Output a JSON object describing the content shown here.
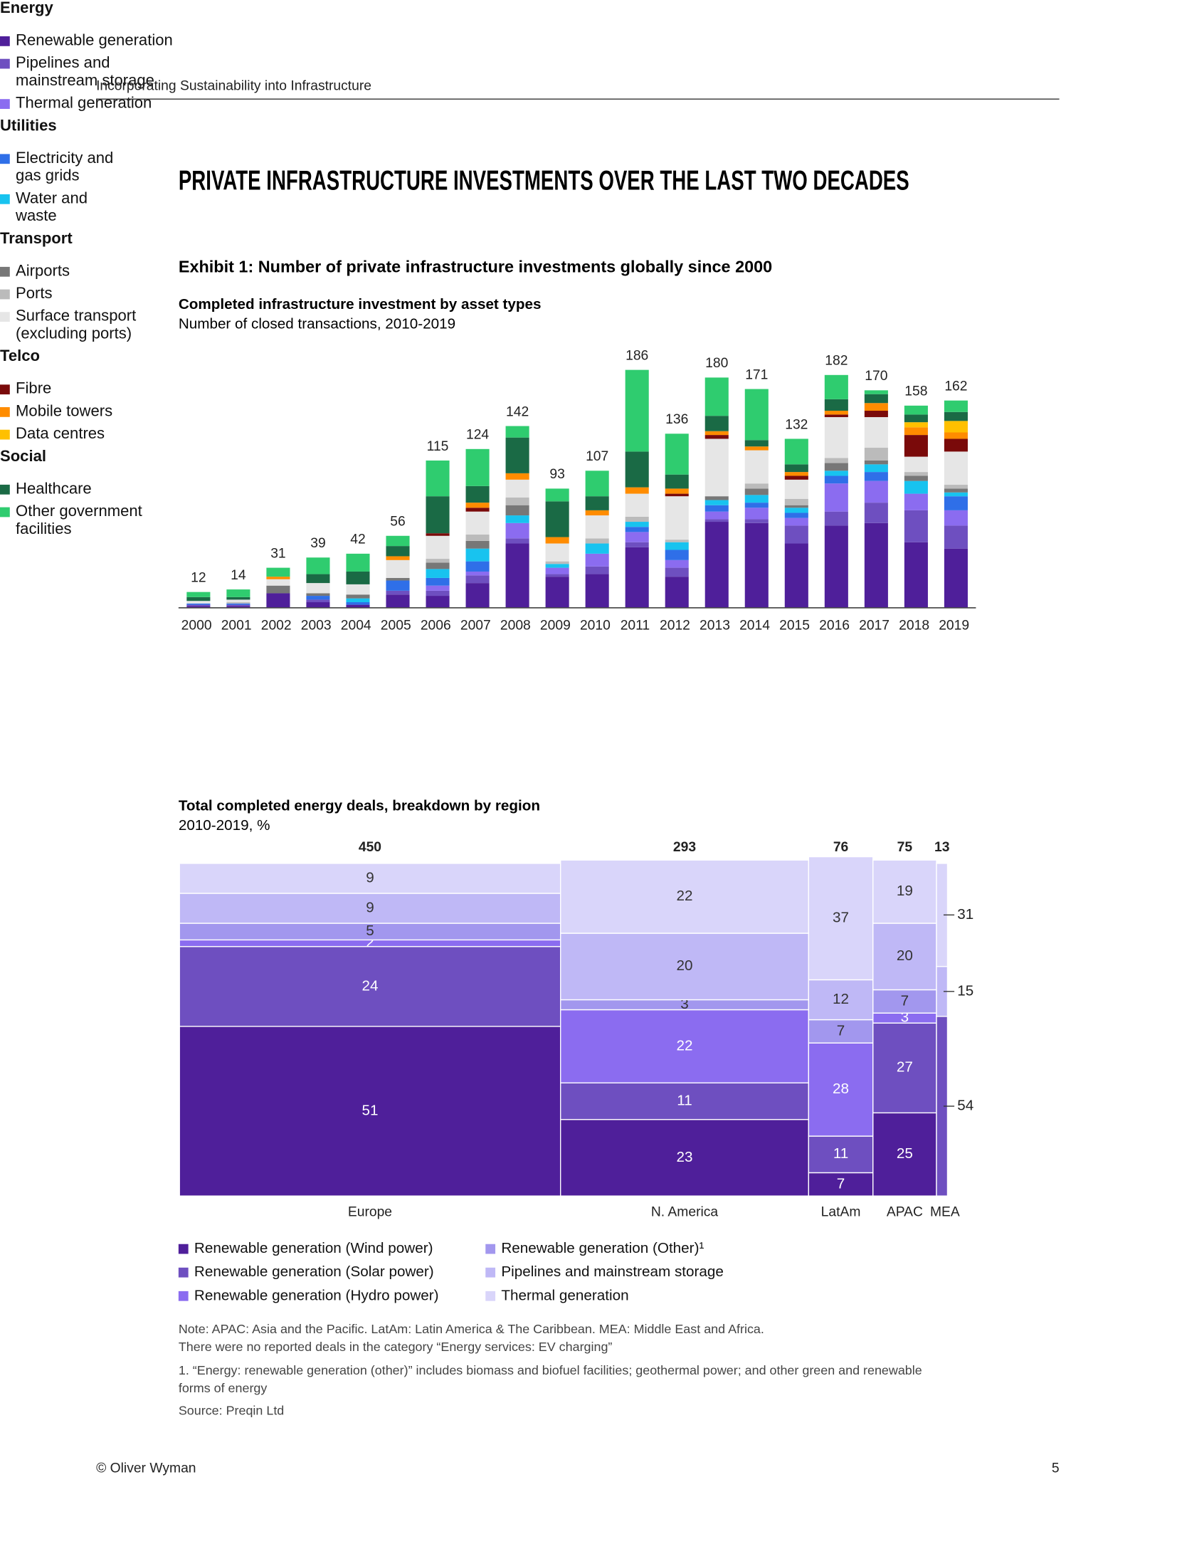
{
  "header": "Incorporating Sustainability into Infrastructure",
  "title": "PRIVATE INFRASTRUCTURE INVESTMENTS OVER THE LAST TWO DECADES",
  "exhibit": "Exhibit 1: Number of private infrastructure investments globally since 2000",
  "chart_data": [
    {
      "type": "stacked_bar",
      "title": "Completed infrastructure investment by asset types",
      "subtitle": "Number of closed transactions, 2010-2019",
      "categories": [
        "2000",
        "2001",
        "2002",
        "2003",
        "2004",
        "2005",
        "2006",
        "2007",
        "2008",
        "2009",
        "2010",
        "2011",
        "2012",
        "2013",
        "2014",
        "2015",
        "2016",
        "2017",
        "2018",
        "2019"
      ],
      "totals": [
        12,
        14,
        31,
        39,
        42,
        56,
        115,
        124,
        142,
        93,
        107,
        186,
        136,
        180,
        171,
        132,
        182,
        170,
        158,
        162
      ],
      "groups": [
        {
          "name": "Energy",
          "series": [
            {
              "name": "Renewable generation",
              "color": "#4f1f9a",
              "values": [
                1,
                1,
                11,
                4,
                2,
                10,
                9,
                19,
                50,
                24,
                26,
                47,
                24,
                67,
                66,
                50,
                64,
                66,
                51,
                46
              ]
            },
            {
              "name": "Pipelines and mainstream storage",
              "color": "#6e4fc0",
              "values": [
                1,
                1,
                0,
                2,
                0,
                3,
                4,
                6,
                4,
                2,
                6,
                4,
                7,
                2,
                3,
                14,
                11,
                16,
                25,
                18
              ]
            },
            {
              "name": "Thermal generation",
              "color": "#8b6cf0",
              "values": [
                0,
                0,
                0,
                0,
                0,
                0,
                4,
                3,
                12,
                5,
                10,
                8,
                6,
                6,
                9,
                6,
                22,
                17,
                13,
                12
              ]
            }
          ]
        },
        {
          "name": "Utilities",
          "series": [
            {
              "name": "Electricity and gas grids",
              "color": "#2f6fe8",
              "values": [
                1,
                1,
                0,
                3,
                2,
                8,
                6,
                8,
                0,
                0,
                0,
                4,
                8,
                5,
                4,
                4,
                6,
                7,
                0,
                11
              ]
            },
            {
              "name": "Water and waste",
              "color": "#18c3ef",
              "values": [
                0,
                0,
                0,
                0,
                3,
                0,
                7,
                10,
                6,
                3,
                8,
                4,
                6,
                4,
                6,
                4,
                4,
                6,
                10,
                3
              ]
            }
          ]
        },
        {
          "name": "Transport",
          "series": [
            {
              "name": "Airports",
              "color": "#777777",
              "values": [
                0,
                0,
                6,
                2,
                3,
                2,
                5,
                6,
                8,
                0,
                0,
                0,
                0,
                3,
                5,
                2,
                6,
                3,
                4,
                3
              ]
            },
            {
              "name": "Ports",
              "color": "#bbbbbb",
              "values": [
                0,
                1,
                0,
                0,
                0,
                0,
                3,
                5,
                6,
                2,
                4,
                4,
                2,
                0,
                4,
                5,
                4,
                10,
                3,
                3
              ]
            },
            {
              "name": "Surface transport (excluding ports)",
              "color": "#e6e6e6",
              "values": [
                2,
                2,
                5,
                8,
                8,
                14,
                18,
                18,
                14,
                14,
                18,
                18,
                34,
                45,
                26,
                15,
                32,
                24,
                12,
                26
              ]
            }
          ]
        },
        {
          "name": "Telco",
          "series": [
            {
              "name": "Fibre",
              "color": "#7a0a0a",
              "values": [
                0,
                0,
                0,
                0,
                0,
                0,
                2,
                3,
                0,
                0,
                0,
                0,
                2,
                3,
                0,
                3,
                2,
                5,
                17,
                10
              ]
            },
            {
              "name": "Mobile towers",
              "color": "#ff8c00",
              "values": [
                0,
                0,
                2,
                0,
                0,
                3,
                0,
                4,
                5,
                5,
                4,
                5,
                4,
                3,
                3,
                3,
                3,
                6,
                6,
                5
              ]
            },
            {
              "name": "Data centres",
              "color": "#ffc000",
              "values": [
                0,
                0,
                0,
                0,
                0,
                0,
                0,
                0,
                0,
                0,
                0,
                0,
                0,
                0,
                0,
                0,
                0,
                0,
                4,
                9
              ]
            }
          ]
        },
        {
          "name": "Social",
          "series": [
            {
              "name": "Healthcare",
              "color": "#1a6a45",
              "values": [
                3,
                2,
                0,
                7,
                10,
                8,
                29,
                13,
                28,
                28,
                11,
                28,
                11,
                12,
                5,
                6,
                9,
                7,
                6,
                7
              ]
            },
            {
              "name": "Other government facilities",
              "color": "#2fcc6f",
              "values": [
                4,
                6,
                7,
                13,
                14,
                8,
                28,
                29,
                9,
                10,
                20,
                64,
                32,
                30,
                40,
                20,
                19,
                3,
                7,
                9
              ]
            }
          ]
        }
      ]
    },
    {
      "type": "marimekko",
      "title": "Total completed energy deals, breakdown by region",
      "subtitle": "2010-2019, %",
      "categories": [
        "Europe",
        "N. America",
        "LatAm",
        "APAC",
        "MEA"
      ],
      "totals": [
        450,
        293,
        76,
        75,
        13
      ],
      "ylim": [
        0,
        100
      ],
      "series": [
        {
          "name": "Renewable generation (Wind power)",
          "color": "#4f1f9a",
          "values": [
            51,
            23,
            7,
            25,
            null
          ]
        },
        {
          "name": "Renewable generation (Solar power)",
          "color": "#6e4fc0",
          "values": [
            24,
            11,
            11,
            27,
            54
          ]
        },
        {
          "name": "Renewable generation (Hydro power)",
          "color": "#8b6cf0",
          "values": [
            2,
            22,
            28,
            3,
            null
          ]
        },
        {
          "name": "Renewable generation (Other)¹",
          "color": "#a297ee",
          "values": [
            5,
            3,
            7,
            7,
            null
          ]
        },
        {
          "name": "Pipelines and mainstream storage",
          "color": "#bfb8f6",
          "values": [
            9,
            20,
            12,
            20,
            15
          ]
        },
        {
          "name": "Thermal generation",
          "color": "#d9d5fa",
          "values": [
            9,
            22,
            37,
            19,
            31
          ]
        }
      ]
    }
  ],
  "notes": [
    "Note: APAC: Asia and the Pacific. LatAm: Latin America & The Caribbean. MEA: Middle East and Africa.",
    "There were no reported deals in the category “Energy services: EV charging”",
    "1. “Energy: renewable generation (other)” includes biomass and biofuel facilities; geothermal power; and other green and renewable forms of energy",
    "Source: Preqin Ltd"
  ],
  "footer": {
    "left": "© Oliver Wyman",
    "page": "5"
  }
}
